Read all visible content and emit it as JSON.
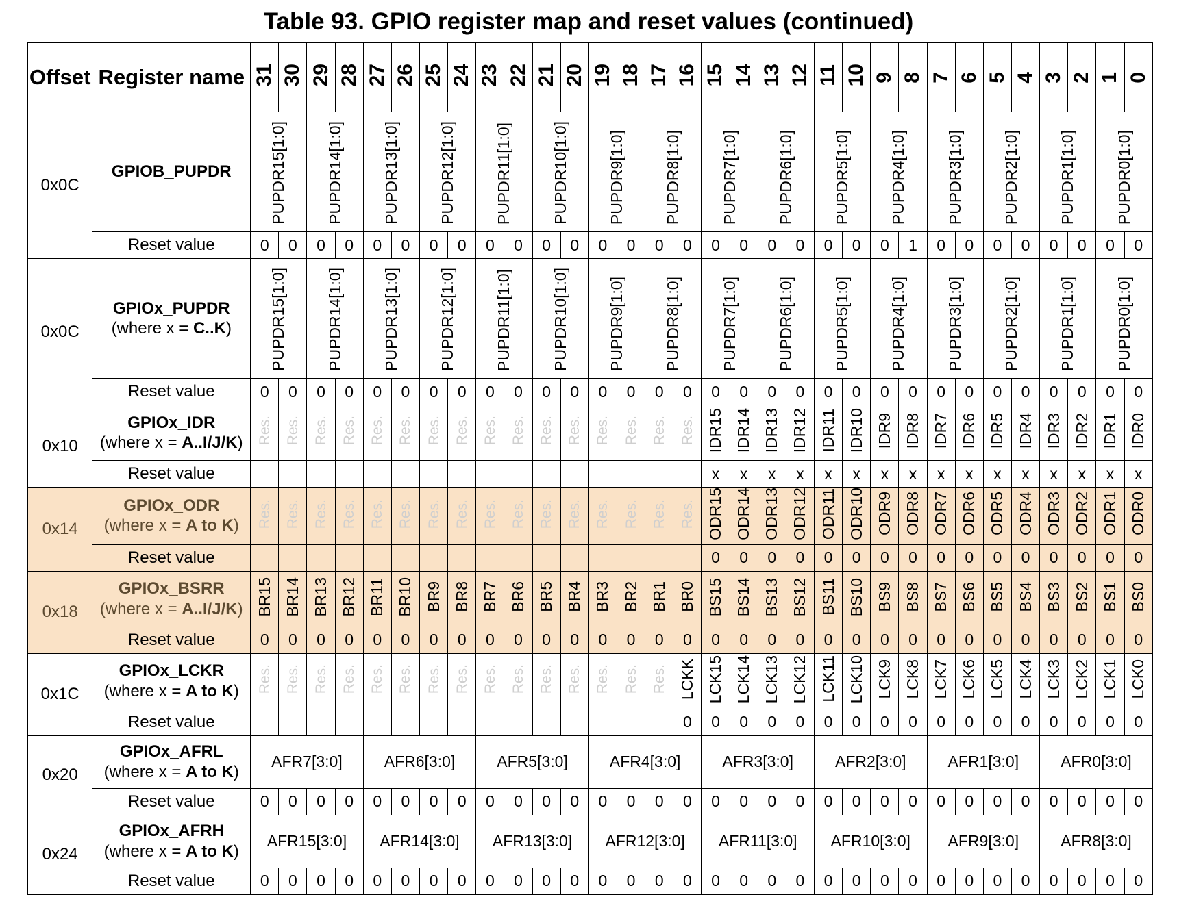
{
  "caption": "Table 93. GPIO register map and reset values (continued)",
  "headers": {
    "offset": "Offset",
    "register_name": "Register name",
    "bits": [
      "31",
      "30",
      "29",
      "28",
      "27",
      "26",
      "25",
      "24",
      "23",
      "22",
      "21",
      "20",
      "19",
      "18",
      "17",
      "16",
      "15",
      "14",
      "13",
      "12",
      "11",
      "10",
      "9",
      "8",
      "7",
      "6",
      "5",
      "4",
      "3",
      "2",
      "1",
      "0"
    ]
  },
  "reset_label": "Reset value",
  "highlight_color": "#fae2c6",
  "registers": [
    {
      "offset": "0x0C",
      "name": "GPIOB_PUPDR",
      "where_prefix": "",
      "where_value": "",
      "where_suffix": "",
      "layout": "pupdr",
      "fields": [
        {
          "label": "PUPDR15[1:0]",
          "span": 2
        },
        {
          "label": "PUPDR14[1:0]",
          "span": 2
        },
        {
          "label": "PUPDR13[1:0]",
          "span": 2
        },
        {
          "label": "PUPDR12[1:0]",
          "span": 2
        },
        {
          "label": "PUPDR11[1:0]",
          "span": 2
        },
        {
          "label": "PUPDR10[1:0]",
          "span": 2
        },
        {
          "label": "PUPDR9[1:0]",
          "span": 2
        },
        {
          "label": "PUPDR8[1:0]",
          "span": 2
        },
        {
          "label": "PUPDR7[1:0]",
          "span": 2
        },
        {
          "label": "PUPDR6[1:0]",
          "span": 2
        },
        {
          "label": "PUPDR5[1:0]",
          "span": 2
        },
        {
          "label": "PUPDR4[1:0]",
          "span": 2
        },
        {
          "label": "PUPDR3[1:0]",
          "span": 2
        },
        {
          "label": "PUPDR2[1:0]",
          "span": 2
        },
        {
          "label": "PUPDR1[1:0]",
          "span": 2
        },
        {
          "label": "PUPDR0[1:0]",
          "span": 2
        }
      ],
      "reset": [
        "0",
        "0",
        "0",
        "0",
        "0",
        "0",
        "0",
        "0",
        "0",
        "0",
        "0",
        "0",
        "0",
        "0",
        "0",
        "0",
        "0",
        "0",
        "0",
        "0",
        "0",
        "0",
        "0",
        "1",
        "0",
        "0",
        "0",
        "0",
        "0",
        "0",
        "0",
        "0"
      ]
    },
    {
      "offset": "0x0C",
      "name": "GPIOx_PUPDR",
      "where_prefix": "(where x = ",
      "where_value": "C..K",
      "where_suffix": ")",
      "layout": "pupdr",
      "fields": [
        {
          "label": "PUPDR15[1:0]",
          "span": 2
        },
        {
          "label": "PUPDR14[1:0]",
          "span": 2
        },
        {
          "label": "PUPDR13[1:0]",
          "span": 2
        },
        {
          "label": "PUPDR12[1:0]",
          "span": 2
        },
        {
          "label": "PUPDR11[1:0]",
          "span": 2
        },
        {
          "label": "PUPDR10[1:0]",
          "span": 2
        },
        {
          "label": "PUPDR9[1:0]",
          "span": 2
        },
        {
          "label": "PUPDR8[1:0]",
          "span": 2
        },
        {
          "label": "PUPDR7[1:0]",
          "span": 2
        },
        {
          "label": "PUPDR6[1:0]",
          "span": 2
        },
        {
          "label": "PUPDR5[1:0]",
          "span": 2
        },
        {
          "label": "PUPDR4[1:0]",
          "span": 2
        },
        {
          "label": "PUPDR3[1:0]",
          "span": 2
        },
        {
          "label": "PUPDR2[1:0]",
          "span": 2
        },
        {
          "label": "PUPDR1[1:0]",
          "span": 2
        },
        {
          "label": "PUPDR0[1:0]",
          "span": 2
        }
      ],
      "reset": [
        "0",
        "0",
        "0",
        "0",
        "0",
        "0",
        "0",
        "0",
        "0",
        "0",
        "0",
        "0",
        "0",
        "0",
        "0",
        "0",
        "0",
        "0",
        "0",
        "0",
        "0",
        "0",
        "0",
        "0",
        "0",
        "0",
        "0",
        "0",
        "0",
        "0",
        "0",
        "0"
      ]
    },
    {
      "offset": "0x10",
      "name": "GPIOx_IDR",
      "where_prefix": "(where x = ",
      "where_value": "A..I/J/K",
      "where_suffix": ")",
      "layout": "short",
      "fields": [
        {
          "label": "Res.",
          "res": true
        },
        {
          "label": "Res.",
          "res": true
        },
        {
          "label": "Res.",
          "res": true
        },
        {
          "label": "Res.",
          "res": true
        },
        {
          "label": "Res.",
          "res": true
        },
        {
          "label": "Res.",
          "res": true
        },
        {
          "label": "Res.",
          "res": true
        },
        {
          "label": "Res.",
          "res": true
        },
        {
          "label": "Res.",
          "res": true
        },
        {
          "label": "Res.",
          "res": true
        },
        {
          "label": "Res.",
          "res": true
        },
        {
          "label": "Res.",
          "res": true
        },
        {
          "label": "Res.",
          "res": true
        },
        {
          "label": "Res.",
          "res": true
        },
        {
          "label": "Res.",
          "res": true
        },
        {
          "label": "Res.",
          "res": true
        },
        {
          "label": "IDR15"
        },
        {
          "label": "IDR14"
        },
        {
          "label": "IDR13"
        },
        {
          "label": "IDR12"
        },
        {
          "label": "IDR11"
        },
        {
          "label": "IDR10"
        },
        {
          "label": "IDR9"
        },
        {
          "label": "IDR8"
        },
        {
          "label": "IDR7"
        },
        {
          "label": "IDR6"
        },
        {
          "label": "IDR5"
        },
        {
          "label": "IDR4"
        },
        {
          "label": "IDR3"
        },
        {
          "label": "IDR2"
        },
        {
          "label": "IDR1"
        },
        {
          "label": "IDR0"
        }
      ],
      "reset": [
        "",
        "",
        "",
        "",
        "",
        "",
        "",
        "",
        "",
        "",
        "",
        "",
        "",
        "",
        "",
        "",
        "x",
        "x",
        "x",
        "x",
        "x",
        "x",
        "x",
        "x",
        "x",
        "x",
        "x",
        "x",
        "x",
        "x",
        "x",
        "x"
      ]
    },
    {
      "offset": "0x14",
      "name": "GPIOx_ODR",
      "where_prefix": "(where x = ",
      "where_value": "A to K",
      "where_suffix": ")",
      "layout": "short",
      "highlight": true,
      "fields": [
        {
          "label": "Res.",
          "res": true
        },
        {
          "label": "Res.",
          "res": true
        },
        {
          "label": "Res.",
          "res": true
        },
        {
          "label": "Res.",
          "res": true
        },
        {
          "label": "Res.",
          "res": true
        },
        {
          "label": "Res.",
          "res": true
        },
        {
          "label": "Res.",
          "res": true
        },
        {
          "label": "Res.",
          "res": true
        },
        {
          "label": "Res.",
          "res": true
        },
        {
          "label": "Res.",
          "res": true
        },
        {
          "label": "Res.",
          "res": true
        },
        {
          "label": "Res.",
          "res": true
        },
        {
          "label": "Res.",
          "res": true
        },
        {
          "label": "Res.",
          "res": true
        },
        {
          "label": "Res.",
          "res": true
        },
        {
          "label": "Res.",
          "res": true
        },
        {
          "label": "ODR15"
        },
        {
          "label": "ODR14"
        },
        {
          "label": "ODR13"
        },
        {
          "label": "ODR12"
        },
        {
          "label": "ODR11"
        },
        {
          "label": "ODR10"
        },
        {
          "label": "ODR9"
        },
        {
          "label": "ODR8"
        },
        {
          "label": "ODR7"
        },
        {
          "label": "ODR6"
        },
        {
          "label": "ODR5"
        },
        {
          "label": "ODR4"
        },
        {
          "label": "ODR3"
        },
        {
          "label": "ODR2"
        },
        {
          "label": "ODR1"
        },
        {
          "label": "ODR0"
        }
      ],
      "reset": [
        "",
        "",
        "",
        "",
        "",
        "",
        "",
        "",
        "",
        "",
        "",
        "",
        "",
        "",
        "",
        "",
        "0",
        "0",
        "0",
        "0",
        "0",
        "0",
        "0",
        "0",
        "0",
        "0",
        "0",
        "0",
        "0",
        "0",
        "0",
        "0"
      ]
    },
    {
      "offset": "0x18",
      "name": "GPIOx_BSRR",
      "where_prefix": "(where x = ",
      "where_value": "A..I/J/K",
      "where_suffix": ")",
      "layout": "short",
      "highlight": true,
      "fields": [
        {
          "label": "BR15"
        },
        {
          "label": "BR14"
        },
        {
          "label": "BR13"
        },
        {
          "label": "BR12"
        },
        {
          "label": "BR11"
        },
        {
          "label": "BR10"
        },
        {
          "label": "BR9"
        },
        {
          "label": "BR8"
        },
        {
          "label": "BR7"
        },
        {
          "label": "BR6"
        },
        {
          "label": "BR5"
        },
        {
          "label": "BR4"
        },
        {
          "label": "BR3"
        },
        {
          "label": "BR2"
        },
        {
          "label": "BR1"
        },
        {
          "label": "BR0"
        },
        {
          "label": "BS15"
        },
        {
          "label": "BS14"
        },
        {
          "label": "BS13"
        },
        {
          "label": "BS12"
        },
        {
          "label": "BS11"
        },
        {
          "label": "BS10"
        },
        {
          "label": "BS9"
        },
        {
          "label": "BS8"
        },
        {
          "label": "BS7"
        },
        {
          "label": "BS6"
        },
        {
          "label": "BS5"
        },
        {
          "label": "BS4"
        },
        {
          "label": "BS3"
        },
        {
          "label": "BS2"
        },
        {
          "label": "BS1"
        },
        {
          "label": "BS0"
        }
      ],
      "reset": [
        "0",
        "0",
        "0",
        "0",
        "0",
        "0",
        "0",
        "0",
        "0",
        "0",
        "0",
        "0",
        "0",
        "0",
        "0",
        "0",
        "0",
        "0",
        "0",
        "0",
        "0",
        "0",
        "0",
        "0",
        "0",
        "0",
        "0",
        "0",
        "0",
        "0",
        "0",
        "0"
      ]
    },
    {
      "offset": "0x1C",
      "name": "GPIOx_LCKR",
      "where_prefix": "(where x = ",
      "where_value": "A to K",
      "where_suffix": ")",
      "layout": "short",
      "fields": [
        {
          "label": "Res.",
          "res": true
        },
        {
          "label": "Res.",
          "res": true
        },
        {
          "label": "Res.",
          "res": true
        },
        {
          "label": "Res.",
          "res": true
        },
        {
          "label": "Res.",
          "res": true
        },
        {
          "label": "Res.",
          "res": true
        },
        {
          "label": "Res.",
          "res": true
        },
        {
          "label": "Res.",
          "res": true
        },
        {
          "label": "Res.",
          "res": true
        },
        {
          "label": "Res.",
          "res": true
        },
        {
          "label": "Res.",
          "res": true
        },
        {
          "label": "Res.",
          "res": true
        },
        {
          "label": "Res.",
          "res": true
        },
        {
          "label": "Res.",
          "res": true
        },
        {
          "label": "Res.",
          "res": true
        },
        {
          "label": "LCKK"
        },
        {
          "label": "LCK15"
        },
        {
          "label": "LCK14"
        },
        {
          "label": "LCK13"
        },
        {
          "label": "LCK12"
        },
        {
          "label": "LCK11"
        },
        {
          "label": "LCK10"
        },
        {
          "label": "LCK9"
        },
        {
          "label": "LCK8"
        },
        {
          "label": "LCK7"
        },
        {
          "label": "LCK6"
        },
        {
          "label": "LCK5"
        },
        {
          "label": "LCK4"
        },
        {
          "label": "LCK3"
        },
        {
          "label": "LCK2"
        },
        {
          "label": "LCK1"
        },
        {
          "label": "LCK0"
        }
      ],
      "reset": [
        "",
        "",
        "",
        "",
        "",
        "",
        "",
        "",
        "",
        "",
        "",
        "",
        "",
        "",
        "",
        "0",
        "0",
        "0",
        "0",
        "0",
        "0",
        "0",
        "0",
        "0",
        "0",
        "0",
        "0",
        "0",
        "0",
        "0",
        "0",
        "0"
      ]
    },
    {
      "offset": "0x20",
      "name": "GPIOx_AFRL",
      "where_prefix": "(where x = ",
      "where_value": "A to K",
      "where_suffix": ")",
      "layout": "afr",
      "fields": [
        {
          "label": "AFR7[3:0]",
          "span": 4,
          "horizontal": true
        },
        {
          "label": "AFR6[3:0]",
          "span": 4,
          "horizontal": true
        },
        {
          "label": "AFR5[3:0]",
          "span": 4,
          "horizontal": true
        },
        {
          "label": "AFR4[3:0]",
          "span": 4,
          "horizontal": true
        },
        {
          "label": "AFR3[3:0]",
          "span": 4,
          "horizontal": true
        },
        {
          "label": "AFR2[3:0]",
          "span": 4,
          "horizontal": true
        },
        {
          "label": "AFR1[3:0]",
          "span": 4,
          "horizontal": true
        },
        {
          "label": "AFR0[3:0]",
          "span": 4,
          "horizontal": true
        }
      ],
      "reset": [
        "0",
        "0",
        "0",
        "0",
        "0",
        "0",
        "0",
        "0",
        "0",
        "0",
        "0",
        "0",
        "0",
        "0",
        "0",
        "0",
        "0",
        "0",
        "0",
        "0",
        "0",
        "0",
        "0",
        "0",
        "0",
        "0",
        "0",
        "0",
        "0",
        "0",
        "0",
        "0"
      ]
    },
    {
      "offset": "0x24",
      "name": "GPIOx_AFRH",
      "where_prefix": "(where x = ",
      "where_value": "A to K",
      "where_suffix": ")",
      "layout": "afr",
      "fields": [
        {
          "label": "AFR15[3:0]",
          "span": 4,
          "horizontal": true
        },
        {
          "label": "AFR14[3:0]",
          "span": 4,
          "horizontal": true
        },
        {
          "label": "AFR13[3:0]",
          "span": 4,
          "horizontal": true
        },
        {
          "label": "AFR12[3:0]",
          "span": 4,
          "horizontal": true
        },
        {
          "label": "AFR11[3:0]",
          "span": 4,
          "horizontal": true
        },
        {
          "label": "AFR10[3:0]",
          "span": 4,
          "horizontal": true
        },
        {
          "label": "AFR9[3:0]",
          "span": 4,
          "horizontal": true
        },
        {
          "label": "AFR8[3:0]",
          "span": 4,
          "horizontal": true
        }
      ],
      "reset": [
        "0",
        "0",
        "0",
        "0",
        "0",
        "0",
        "0",
        "0",
        "0",
        "0",
        "0",
        "0",
        "0",
        "0",
        "0",
        "0",
        "0",
        "0",
        "0",
        "0",
        "0",
        "0",
        "0",
        "0",
        "0",
        "0",
        "0",
        "0",
        "0",
        "0",
        "0",
        "0"
      ]
    }
  ]
}
